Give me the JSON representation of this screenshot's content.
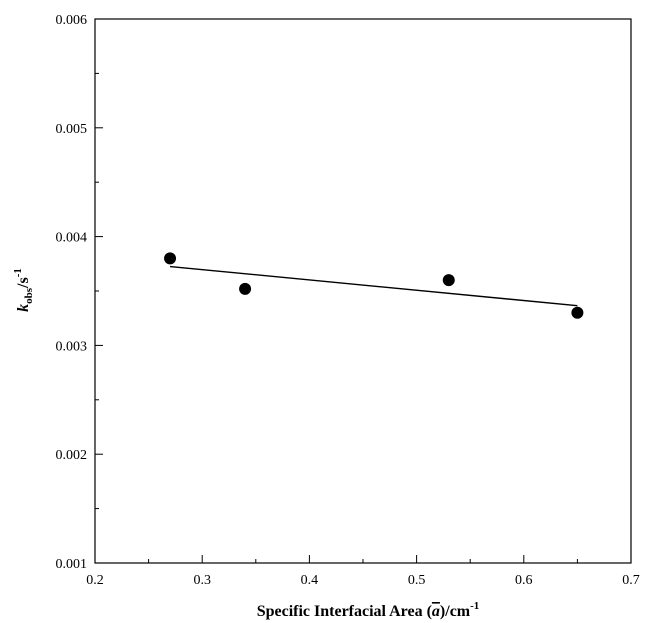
{
  "chart_data": {
    "type": "scatter",
    "xlabel": {
      "prefix": "Specific Interfacial Area (",
      "symbol": "a",
      "suffix": ")/cm",
      "sup": "-1"
    },
    "ylabel": {
      "symbol": "k",
      "sub": "obs",
      "unit": "/s",
      "sup": "-1"
    },
    "xlim": [
      0.2,
      0.7
    ],
    "ylim": [
      0.001,
      0.006
    ],
    "x_ticks": [
      "0.2",
      "0.3",
      "0.4",
      "0.5",
      "0.6",
      "0.7"
    ],
    "y_ticks": [
      "0.001",
      "0.002",
      "0.003",
      "0.004",
      "0.005",
      "0.006"
    ],
    "grid": false,
    "series": [
      {
        "points": [
          {
            "x": 0.27,
            "y": 0.0038
          },
          {
            "x": 0.34,
            "y": 0.00352
          },
          {
            "x": 0.53,
            "y": 0.0036
          },
          {
            "x": 0.65,
            "y": 0.0033
          }
        ]
      }
    ],
    "fit_line": {
      "x": [
        0.27,
        0.65
      ],
      "y": [
        0.003725,
        0.003365
      ]
    }
  }
}
